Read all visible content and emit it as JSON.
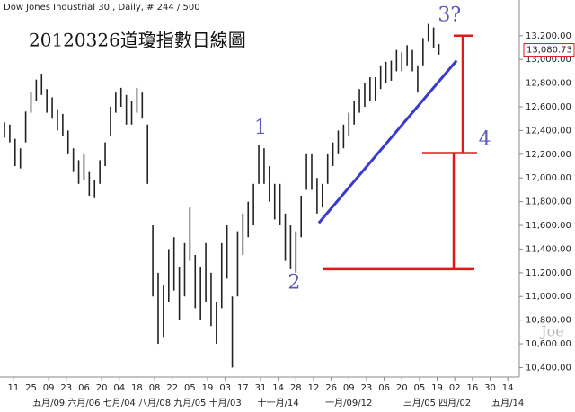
{
  "chart_data": {
    "type": "ohlc",
    "header": "Dow Jones Industrial 30 , Daily, # 244 / 500",
    "title": "20120326道瓊指數日線圖",
    "color": "#222222",
    "x": [
      0,
      3,
      6,
      9,
      12,
      15,
      18,
      21,
      24,
      27,
      30,
      33,
      36,
      39,
      42,
      45,
      48,
      51,
      54,
      57,
      60,
      63,
      66,
      69,
      72,
      75,
      78,
      81,
      84,
      87,
      90,
      93,
      96,
      99,
      102,
      105,
      108,
      111,
      114,
      117,
      120,
      123,
      126,
      129,
      132,
      135,
      138,
      141,
      144,
      147,
      150,
      153,
      156,
      159,
      162,
      165,
      168,
      171,
      174,
      177,
      180,
      183,
      186,
      189,
      192,
      195,
      198,
      201,
      204,
      207,
      210,
      213,
      216,
      219,
      222,
      225,
      228,
      231,
      234,
      237,
      240,
      243,
      246
    ],
    "low": [
      12340,
      12300,
      12100,
      12080,
      12300,
      12550,
      12650,
      12700,
      12550,
      12500,
      12400,
      12350,
      12200,
      12050,
      11950,
      11980,
      11850,
      11830,
      11950,
      12100,
      12350,
      12550,
      12600,
      12450,
      12450,
      12550,
      12500,
      11950,
      11000,
      10600,
      10650,
      10950,
      11050,
      10800,
      11000,
      11300,
      10900,
      10800,
      10950,
      10750,
      10600,
      10900,
      11150,
      10400,
      11000,
      11350,
      11500,
      11600,
      11950,
      11950,
      11800,
      11650,
      11600,
      11300,
      11230,
      11200,
      11500,
      11900,
      11900,
      11700,
      11750,
      11950,
      12100,
      12200,
      12250,
      12350,
      12450,
      12550,
      12600,
      12650,
      12650,
      12750,
      12800,
      12820,
      12900,
      12900,
      12950,
      12900,
      12720,
      12950,
      13150,
      13100,
      13040
    ],
    "high": [
      12470,
      12450,
      12330,
      12250,
      12560,
      12720,
      12830,
      12880,
      12750,
      12680,
      12580,
      12540,
      12400,
      12250,
      12150,
      12200,
      12050,
      11980,
      12150,
      12300,
      12600,
      12720,
      12760,
      12700,
      12650,
      12760,
      12720,
      12450,
      11600,
      11200,
      11100,
      11400,
      11500,
      11250,
      11450,
      11750,
      11350,
      11250,
      11450,
      11200,
      10950,
      11450,
      11600,
      11000,
      11550,
      11700,
      11800,
      11950,
      12280,
      12250,
      12100,
      11950,
      11950,
      11700,
      11600,
      11550,
      11850,
      12200,
      12200,
      12000,
      11950,
      12200,
      12300,
      12400,
      12450,
      12550,
      12650,
      12750,
      12800,
      12850,
      12850,
      12950,
      12980,
      12990,
      13080,
      13060,
      13120,
      13080,
      12950,
      13180,
      13300,
      13270,
      13130
    ],
    "last_price": {
      "value": 13080.73,
      "label": "13,080.73"
    },
    "xlim": [
      0,
      290
    ],
    "ylim": [
      10320,
      13350
    ],
    "yticks": [
      {
        "value": 10400,
        "label": "10,400.00"
      },
      {
        "value": 10600,
        "label": "10,600.00"
      },
      {
        "value": 10800,
        "label": "10,800.00"
      },
      {
        "value": 11000,
        "label": "11,000.00"
      },
      {
        "value": 11200,
        "label": "11,200.00"
      },
      {
        "value": 11400,
        "label": "11,400.00"
      },
      {
        "value": 11600,
        "label": "11,600.00"
      },
      {
        "value": 11800,
        "label": "11,800.00"
      },
      {
        "value": 12000,
        "label": "12,000.00"
      },
      {
        "value": 12200,
        "label": "12,200.00"
      },
      {
        "value": 12400,
        "label": "12,400.00"
      },
      {
        "value": 12600,
        "label": "12,600.00"
      },
      {
        "value": 12800,
        "label": "12,800.00"
      },
      {
        "value": 13000,
        "label": "13,000.00"
      },
      {
        "value": 13200,
        "label": "13,200.00"
      }
    ],
    "xticks": [
      {
        "value": 5,
        "label": "11"
      },
      {
        "value": 15,
        "label": "25"
      },
      {
        "value": 25,
        "label": "09"
      },
      {
        "value": 35,
        "label": "23"
      },
      {
        "value": 45,
        "label": "06"
      },
      {
        "value": 55,
        "label": "20"
      },
      {
        "value": 65,
        "label": "04"
      },
      {
        "value": 75,
        "label": "18"
      },
      {
        "value": 85,
        "label": "08"
      },
      {
        "value": 95,
        "label": "22"
      },
      {
        "value": 105,
        "label": "05"
      },
      {
        "value": 115,
        "label": "19"
      },
      {
        "value": 125,
        "label": "03"
      },
      {
        "value": 135,
        "label": "17"
      },
      {
        "value": 145,
        "label": "31"
      },
      {
        "value": 155,
        "label": "14"
      },
      {
        "value": 165,
        "label": "28"
      },
      {
        "value": 175,
        "label": "12"
      },
      {
        "value": 185,
        "label": "26"
      },
      {
        "value": 195,
        "label": "09"
      },
      {
        "value": 205,
        "label": "23"
      },
      {
        "value": 215,
        "label": "06"
      },
      {
        "value": 225,
        "label": "20"
      },
      {
        "value": 235,
        "label": "05"
      },
      {
        "value": 245,
        "label": "19"
      },
      {
        "value": 255,
        "label": "02"
      },
      {
        "value": 265,
        "label": "16"
      },
      {
        "value": 275,
        "label": "30"
      },
      {
        "value": 285,
        "label": "14"
      }
    ],
    "month_ticks": [
      {
        "value": 25,
        "label": "五月/09"
      },
      {
        "value": 45,
        "label": "六月/06"
      },
      {
        "value": 65,
        "label": "七月/04"
      },
      {
        "value": 85,
        "label": "八月/08"
      },
      {
        "value": 105,
        "label": "九月/05"
      },
      {
        "value": 125,
        "label": "十月/03"
      },
      {
        "value": 155,
        "label": "十一月/14"
      },
      {
        "value": 195,
        "label": "一月/09/12"
      },
      {
        "value": 235,
        "label": "三月/05"
      },
      {
        "value": 255,
        "label": "四月/02"
      },
      {
        "value": 285,
        "label": "五月/14"
      }
    ],
    "trendline": {
      "color": "#3a3acc",
      "x": [
        178,
        256
      ],
      "y": [
        11620,
        12990
      ]
    },
    "levels": {
      "color": "#e01a1a",
      "values": [
        13200,
        12210,
        11230
      ]
    },
    "annotations": [
      {
        "text": "1",
        "x": 145,
        "y": 12420
      },
      {
        "text": "2",
        "x": 164,
        "y": 11110
      },
      {
        "text": "3?",
        "x": 252,
        "y": 13370
      },
      {
        "text": "4",
        "x": 272,
        "y": 12320
      }
    ],
    "watermark": "Joe"
  }
}
